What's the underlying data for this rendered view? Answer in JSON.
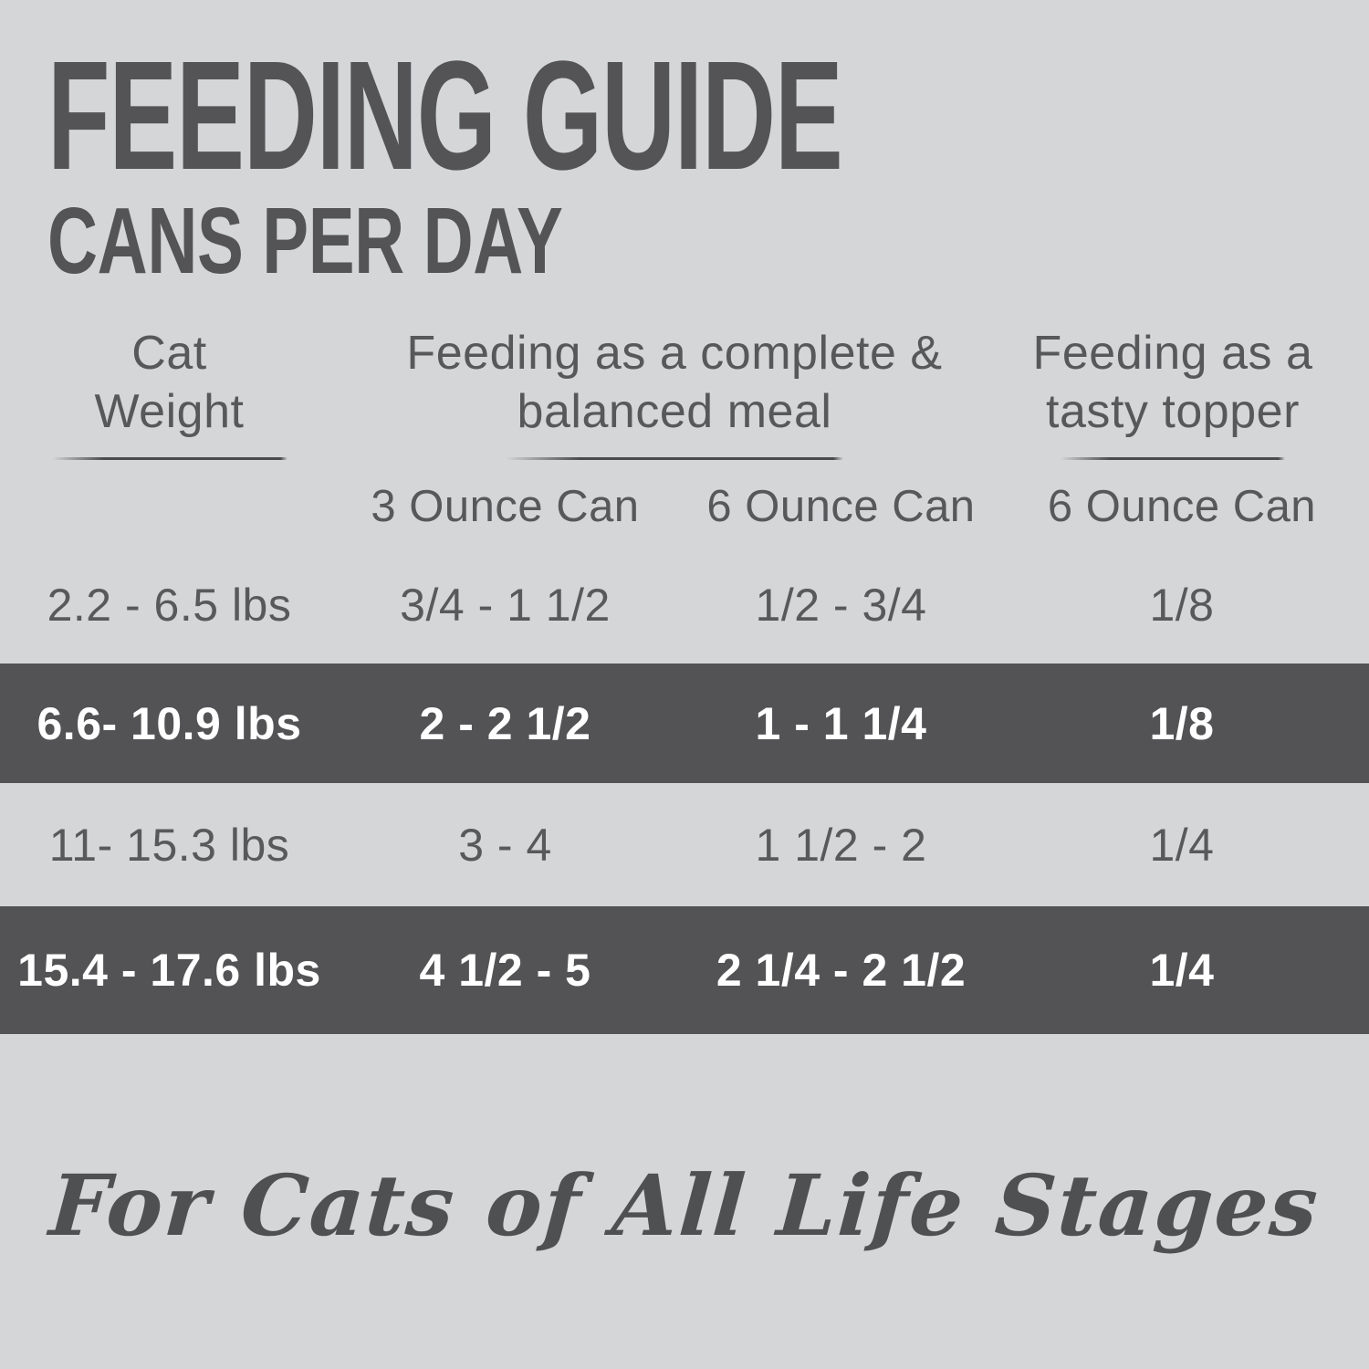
{
  "header": {
    "title": "FEEDING GUIDE",
    "subtitle": "CANS PER DAY"
  },
  "table": {
    "column_groups": [
      {
        "line1": "Cat",
        "line2": "Weight"
      },
      {
        "line1": "Feeding as a complete &",
        "line2": "balanced meal"
      },
      {
        "line1": "Feeding as a",
        "line2": "tasty topper"
      }
    ],
    "sub_headers": [
      "3 Ounce Can",
      "6 Ounce Can",
      "6 Ounce Can"
    ],
    "rows": [
      {
        "highlight": false,
        "cells": [
          "2.2 - 6.5 lbs",
          "3/4 - 1 1/2",
          "1/2 - 3/4",
          "1/8"
        ]
      },
      {
        "highlight": true,
        "cells": [
          "6.6- 10.9 lbs",
          "2 - 2 1/2",
          "1 - 1 1/4",
          "1/8"
        ]
      },
      {
        "highlight": false,
        "cells": [
          "11- 15.3 lbs",
          "3 - 4",
          "1 1/2 - 2",
          "1/4"
        ]
      },
      {
        "highlight": true,
        "cells": [
          "15.4 - 17.6 lbs",
          "4 1/2 - 5",
          "2 1/4 - 2 1/2",
          "1/4"
        ]
      }
    ]
  },
  "footer": {
    "tagline": "For Cats of All Life Stages"
  },
  "colors": {
    "background": "#d5d6d8",
    "highlight_band": "#535355",
    "text_dark": "#58595b",
    "text_on_band": "#ffffff"
  }
}
